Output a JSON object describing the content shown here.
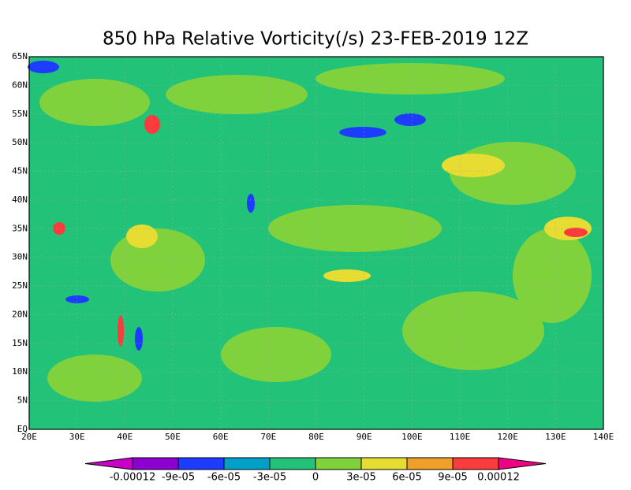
{
  "title": "850 hPa Relative Vorticity(/s) 23-FEB-2019 12Z",
  "lon_range": [
    20,
    140
  ],
  "lat_range": [
    0,
    65
  ],
  "lon_ticks": [
    {
      "value": 20,
      "label": "20E"
    },
    {
      "value": 30,
      "label": "30E"
    },
    {
      "value": 40,
      "label": "40E"
    },
    {
      "value": 50,
      "label": "50E"
    },
    {
      "value": 60,
      "label": "60E"
    },
    {
      "value": 70,
      "label": "70E"
    },
    {
      "value": 80,
      "label": "80E"
    },
    {
      "value": 90,
      "label": "90E"
    },
    {
      "value": 100,
      "label": "100E"
    },
    {
      "value": 110,
      "label": "110E"
    },
    {
      "value": 120,
      "label": "120E"
    },
    {
      "value": 130,
      "label": "130E"
    },
    {
      "value": 140,
      "label": "140E"
    }
  ],
  "lat_ticks": [
    {
      "value": 0,
      "label": "EQ"
    },
    {
      "value": 5,
      "label": "5N"
    },
    {
      "value": 10,
      "label": "10N"
    },
    {
      "value": 15,
      "label": "15N"
    },
    {
      "value": 20,
      "label": "20N"
    },
    {
      "value": 25,
      "label": "25N"
    },
    {
      "value": 30,
      "label": "30N"
    },
    {
      "value": 35,
      "label": "35N"
    },
    {
      "value": 40,
      "label": "40N"
    },
    {
      "value": 45,
      "label": "45N"
    },
    {
      "value": 50,
      "label": "50N"
    },
    {
      "value": 55,
      "label": "55N"
    },
    {
      "value": 60,
      "label": "60N"
    },
    {
      "value": 65,
      "label": "65N"
    }
  ],
  "colorbar": {
    "levels": [
      {
        "value": -0.00012,
        "label": "-0.00012"
      },
      {
        "value": -9e-05,
        "label": "-9e-05"
      },
      {
        "value": -6e-05,
        "label": "-6e-05"
      },
      {
        "value": -3e-05,
        "label": "-3e-05"
      },
      0,
      {
        "value": 3e-05,
        "label": "3e-05"
      },
      {
        "value": 6e-05,
        "label": "6e-05"
      },
      {
        "value": 9e-05,
        "label": "9e-05"
      },
      {
        "value": 0.00012,
        "label": "0.00012"
      }
    ],
    "colors": [
      "#c800c8",
      "#8c00d2",
      "#1e3cff",
      "#00a0c8",
      "#22c278",
      "#80d23c",
      "#e6dc32",
      "#f0a028",
      "#fa3c3c",
      "#f00082"
    ]
  }
}
